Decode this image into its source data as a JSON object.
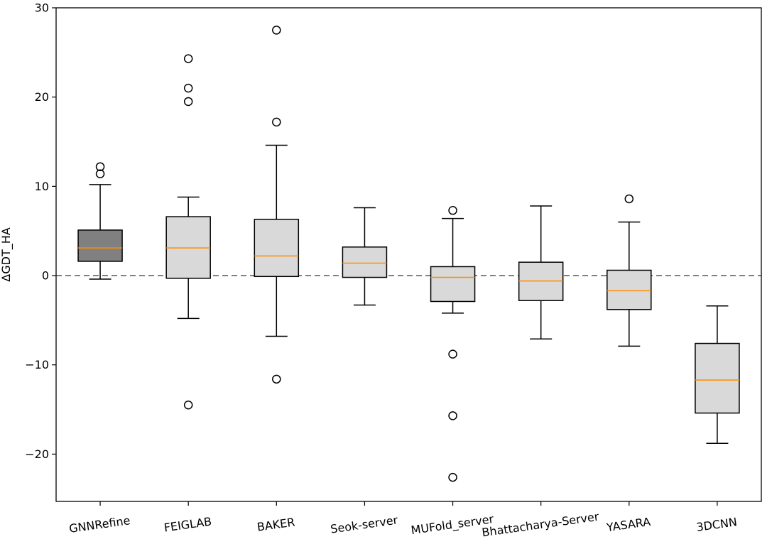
{
  "chart_data": {
    "type": "box",
    "title": "",
    "xlabel": "",
    "ylabel": "ΔGDT_HA",
    "ylim": [
      -25.3,
      30
    ],
    "yticks": [
      -20,
      -10,
      0,
      10,
      20,
      30
    ],
    "ytick_labels": [
      "−20",
      "−10",
      "0",
      "10",
      "20",
      "30"
    ],
    "reference_line": {
      "y": 0,
      "style": "dashed",
      "color": "#808080"
    },
    "grid": false,
    "colors": {
      "highlight_box": "#808080",
      "box": "#d9d9d9",
      "median": "#ff8c00",
      "edge": "#000000"
    },
    "categories": [
      "GNNRefine",
      "FEIGLAB",
      "BAKER",
      "Seok-server",
      "MUFold_server",
      "Bhattacharya-Server",
      "YASARA",
      "3DCNN"
    ],
    "boxes": [
      {
        "name": "GNNRefine",
        "highlight": true,
        "whisker_low": -0.4,
        "q1": 1.6,
        "median": 3.1,
        "q3": 5.1,
        "whisker_high": 10.2,
        "outliers": [
          11.4,
          12.2
        ]
      },
      {
        "name": "FEIGLAB",
        "highlight": false,
        "whisker_low": -4.8,
        "q1": -0.3,
        "median": 3.1,
        "q3": 6.6,
        "whisker_high": 8.8,
        "outliers": [
          19.5,
          21.0,
          24.3,
          -14.5
        ]
      },
      {
        "name": "BAKER",
        "highlight": false,
        "whisker_low": -6.8,
        "q1": -0.1,
        "median": 2.2,
        "q3": 6.3,
        "whisker_high": 14.6,
        "outliers": [
          17.2,
          27.5,
          -11.6
        ]
      },
      {
        "name": "Seok-server",
        "highlight": false,
        "whisker_low": -3.3,
        "q1": -0.2,
        "median": 1.4,
        "q3": 3.2,
        "whisker_high": 7.6,
        "outliers": []
      },
      {
        "name": "MUFold_server",
        "highlight": false,
        "whisker_low": -4.2,
        "q1": -2.9,
        "median": -0.2,
        "q3": 1.0,
        "whisker_high": 6.4,
        "outliers": [
          7.3,
          -8.8,
          -15.7,
          -22.6
        ]
      },
      {
        "name": "Bhattacharya-Server",
        "highlight": false,
        "whisker_low": -7.1,
        "q1": -2.8,
        "median": -0.6,
        "q3": 1.5,
        "whisker_high": 7.8,
        "outliers": []
      },
      {
        "name": "YASARA",
        "highlight": false,
        "whisker_low": -7.9,
        "q1": -3.8,
        "median": -1.7,
        "q3": 0.6,
        "whisker_high": 6.0,
        "outliers": [
          8.6
        ]
      },
      {
        "name": "3DCNN",
        "highlight": false,
        "whisker_low": -18.8,
        "q1": -15.4,
        "median": -11.7,
        "q3": -7.6,
        "whisker_high": -3.4,
        "outliers": []
      }
    ]
  }
}
